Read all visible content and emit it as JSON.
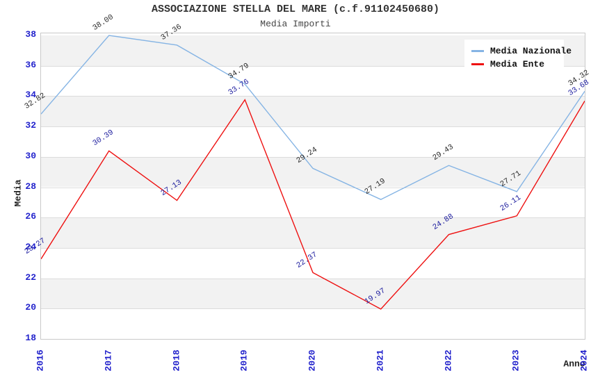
{
  "title": "ASSOCIAZIONE STELLA DEL MARE (c.f.91102450680)",
  "subtitle": "Media Importi",
  "chart_data": {
    "type": "line",
    "x": [
      "2016",
      "2017",
      "2018",
      "2019",
      "2020",
      "2021",
      "2022",
      "2023",
      "2024"
    ],
    "series": [
      {
        "name": "Media Nazionale",
        "color": "#85b4e4",
        "label_color": "#2b2b2b",
        "values": [
          32.82,
          38.0,
          37.36,
          34.79,
          29.24,
          27.19,
          29.43,
          27.71,
          34.32
        ],
        "labels": [
          "32.82",
          "38.00",
          "37.36",
          "34.79",
          "29.24",
          "27.19",
          "29.43",
          "27.71",
          "34.32"
        ]
      },
      {
        "name": "Media Ente",
        "color": "#ee1111",
        "label_color": "#1c1c9e",
        "values": [
          23.27,
          30.39,
          27.13,
          33.76,
          22.37,
          19.97,
          24.88,
          26.11,
          33.68
        ],
        "labels": [
          "23.27",
          "30.39",
          "27.13",
          "33.76",
          "22.37",
          "19.97",
          "24.88",
          "26.11",
          "33.68"
        ]
      }
    ],
    "xlabel": "Anno",
    "ylabel": "Media",
    "ylim": [
      18,
      38
    ],
    "ytick_step": 2,
    "yticks": [
      38,
      36,
      34,
      32,
      30,
      28,
      26,
      24,
      22,
      20,
      18
    ],
    "grid": "alternating-horizontal-bands",
    "band_color": "#f2f2f2",
    "gridline_color": "#dcdcdc",
    "axis_tick_color": "#2222cc",
    "legend_position": "top-right"
  }
}
